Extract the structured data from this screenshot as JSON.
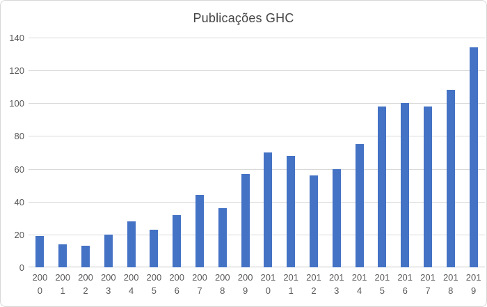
{
  "chart": {
    "title": "Publicações GHC"
  },
  "chart_data": {
    "type": "bar",
    "title": "Publicações GHC",
    "categories": [
      "2000",
      "2001",
      "2002",
      "2003",
      "2004",
      "2005",
      "2006",
      "2007",
      "2008",
      "2009",
      "2010",
      "2011",
      "2012",
      "2013",
      "2014",
      "2015",
      "2016",
      "2017",
      "2018",
      "2019"
    ],
    "values": [
      19,
      14,
      13,
      20,
      28,
      23,
      32,
      44,
      36,
      57,
      70,
      68,
      56,
      60,
      75,
      98,
      100,
      98,
      108,
      134
    ],
    "xlabel": "",
    "ylabel": "",
    "ylim": [
      0,
      140
    ],
    "ytick_step": 20,
    "yticks": [
      0,
      20,
      40,
      60,
      80,
      100,
      120,
      140
    ],
    "grid": true,
    "legend": false,
    "bar_color": "#4472c4",
    "gridline_color": "#d9d9d9",
    "axis_line_color": "#c6c6c6",
    "tick_label_color": "#595959",
    "title_color": "#444444"
  }
}
